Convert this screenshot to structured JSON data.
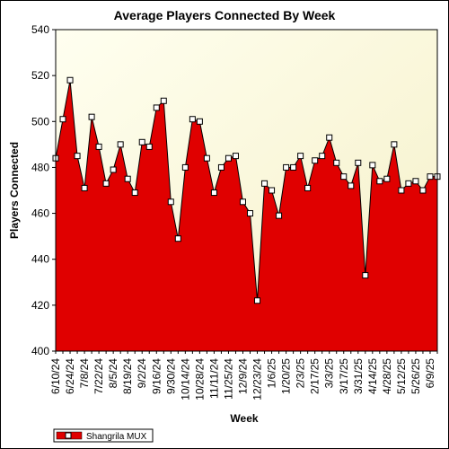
{
  "chart_data": {
    "type": "area",
    "title": "Average Players Connected By Week",
    "xlabel": "Week",
    "ylabel": "Players Connected",
    "ylim": [
      400,
      540
    ],
    "yticks": [
      400,
      420,
      440,
      460,
      480,
      500,
      520,
      540
    ],
    "grid": false,
    "legend_position": "bottom-left",
    "x_tick_labels": [
      "6/10/24",
      "6/24/24",
      "7/8/24",
      "7/22/24",
      "8/5/24",
      "8/19/24",
      "9/2/24",
      "9/16/24",
      "9/30/24",
      "10/14/24",
      "10/28/24",
      "11/11/24",
      "11/25/24",
      "12/9/24",
      "12/23/24",
      "1/6/25",
      "1/20/25",
      "2/3/25",
      "2/17/25",
      "3/3/25",
      "3/17/25",
      "3/31/25",
      "4/14/25",
      "4/28/25",
      "5/12/25",
      "5/26/25",
      "6/9/25"
    ],
    "x": [
      "6/10/24",
      "6/17/24",
      "6/24/24",
      "7/1/24",
      "7/8/24",
      "7/15/24",
      "7/22/24",
      "7/29/24",
      "8/5/24",
      "8/12/24",
      "8/19/24",
      "8/26/24",
      "9/2/24",
      "9/9/24",
      "9/16/24",
      "9/23/24",
      "9/30/24",
      "10/7/24",
      "10/14/24",
      "10/21/24",
      "10/28/24",
      "11/4/24",
      "11/11/24",
      "11/18/24",
      "11/25/24",
      "12/2/24",
      "12/9/24",
      "12/16/24",
      "12/23/24",
      "12/30/24",
      "1/6/25",
      "1/13/25",
      "1/20/25",
      "1/27/25",
      "2/3/25",
      "2/10/25",
      "2/17/25",
      "2/24/25",
      "3/3/25",
      "3/10/25",
      "3/17/25",
      "3/24/25",
      "3/31/25",
      "4/7/25",
      "4/14/25",
      "4/21/25",
      "4/28/25",
      "5/5/25",
      "5/12/25",
      "5/19/25",
      "5/26/25",
      "6/2/25",
      "6/9/25",
      "6/16/25"
    ],
    "series": [
      {
        "name": "Shangrila MUX",
        "color": "#e00000",
        "values": [
          484,
          501,
          518,
          485,
          471,
          502,
          489,
          473,
          479,
          490,
          475,
          469,
          491,
          489,
          506,
          509,
          465,
          449,
          480,
          501,
          500,
          484,
          469,
          480,
          484,
          485,
          465,
          460,
          422,
          473,
          470,
          459,
          480,
          480,
          485,
          471,
          483,
          485,
          493,
          482,
          476,
          472,
          482,
          433,
          481,
          474,
          475,
          490,
          470,
          473,
          474,
          470,
          476,
          476
        ]
      }
    ]
  }
}
